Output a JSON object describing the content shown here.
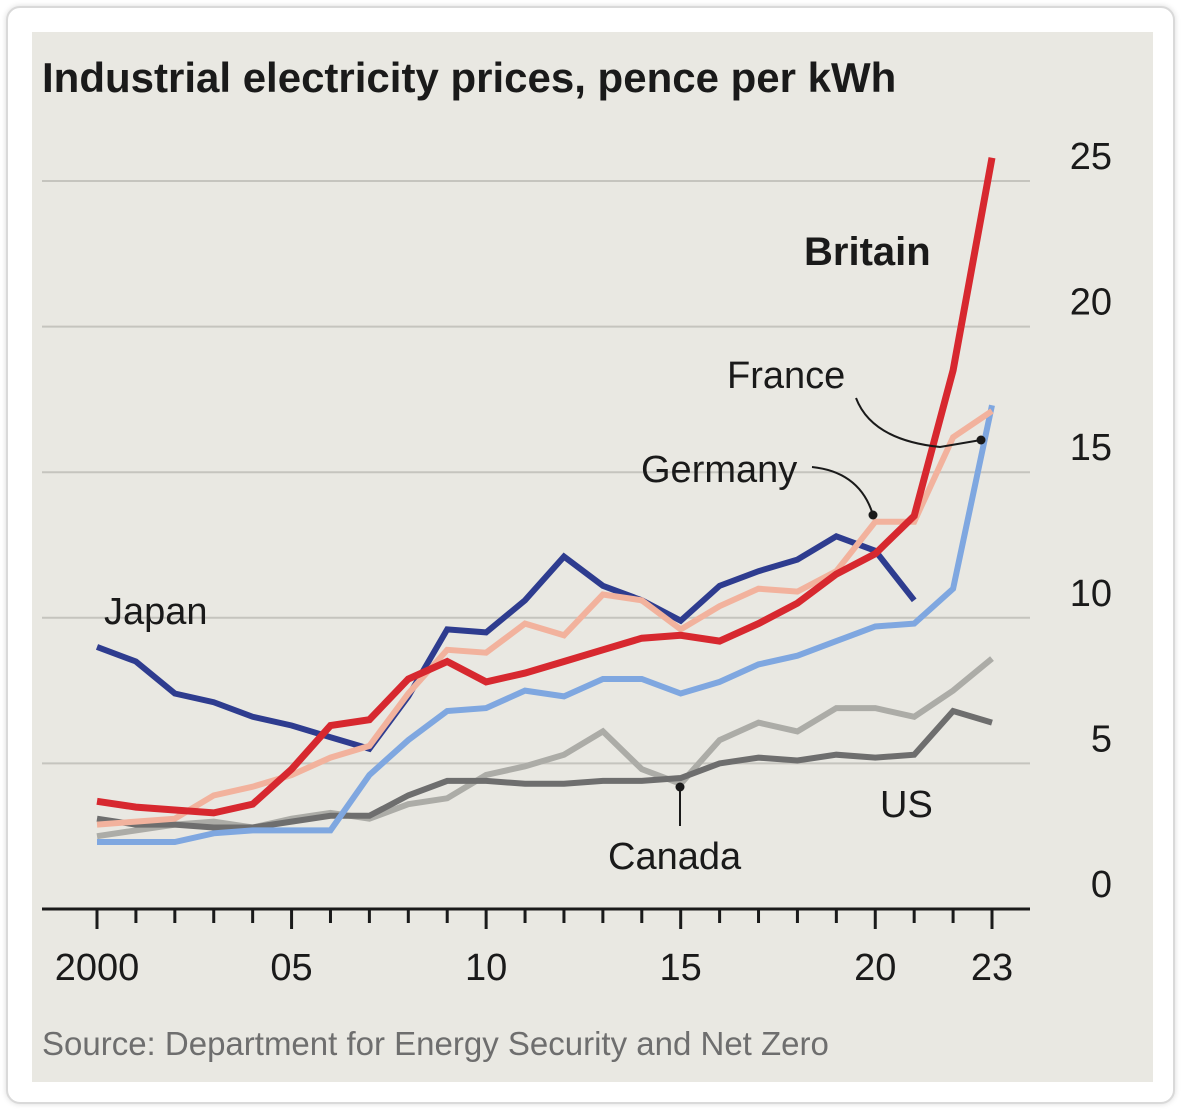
{
  "chart_data": {
    "type": "line",
    "title": "Industrial electricity prices, pence per kWh",
    "source": "Source: Department for Energy Security and Net Zero",
    "xlabel": "",
    "ylabel": "pence per kWh",
    "xlim": [
      2000,
      2023
    ],
    "ylim": [
      0,
      25
    ],
    "y_ticks": [
      0,
      5,
      10,
      15,
      20,
      25
    ],
    "x_ticks": [
      2000,
      2005,
      2010,
      2015,
      2020,
      2023
    ],
    "x_tick_labels": [
      "2000",
      "05",
      "10",
      "15",
      "20",
      "23"
    ],
    "grid": true,
    "series": [
      {
        "name": "Japan",
        "label": "Japan",
        "color": "#2e3c8f",
        "x": [
          2000,
          2001,
          2002,
          2003,
          2004,
          2005,
          2006,
          2007,
          2008,
          2009,
          2010,
          2011,
          2012,
          2013,
          2014,
          2015,
          2016,
          2017,
          2018,
          2019,
          2020,
          2021
        ],
        "values": [
          9.0,
          8.5,
          7.4,
          7.1,
          6.6,
          6.3,
          5.9,
          5.5,
          7.3,
          9.6,
          9.5,
          10.6,
          12.1,
          11.1,
          10.6,
          9.9,
          11.1,
          11.6,
          12.0,
          12.8,
          12.3,
          10.6
        ]
      },
      {
        "name": "Germany",
        "label": "Germany",
        "color": "#f2b29d",
        "x": [
          2000,
          2001,
          2002,
          2003,
          2004,
          2005,
          2006,
          2007,
          2008,
          2009,
          2010,
          2011,
          2012,
          2013,
          2014,
          2015,
          2016,
          2017,
          2018,
          2019,
          2020,
          2021,
          2022,
          2023
        ],
        "values": [
          2.9,
          3.0,
          3.1,
          3.9,
          4.2,
          4.6,
          5.2,
          5.6,
          7.4,
          8.9,
          8.8,
          9.8,
          9.4,
          10.8,
          10.6,
          9.6,
          10.4,
          11.0,
          10.9,
          11.6,
          13.3,
          13.3,
          16.2,
          17.1
        ]
      },
      {
        "name": "France",
        "label": "France",
        "color": "#7fa7e0",
        "x": [
          2000,
          2001,
          2002,
          2003,
          2004,
          2005,
          2006,
          2007,
          2008,
          2009,
          2010,
          2011,
          2012,
          2013,
          2014,
          2015,
          2016,
          2017,
          2018,
          2019,
          2020,
          2021,
          2022,
          2023
        ],
        "values": [
          2.3,
          2.3,
          2.3,
          2.6,
          2.7,
          2.7,
          2.7,
          4.6,
          5.8,
          6.8,
          6.9,
          7.5,
          7.3,
          7.9,
          7.9,
          7.4,
          7.8,
          8.4,
          8.7,
          9.2,
          9.7,
          9.8,
          11.0,
          17.3
        ]
      },
      {
        "name": "Britain",
        "label": "Britain",
        "color": "#d7282f",
        "x": [
          2000,
          2001,
          2002,
          2003,
          2004,
          2005,
          2006,
          2007,
          2008,
          2009,
          2010,
          2011,
          2012,
          2013,
          2014,
          2015,
          2016,
          2017,
          2018,
          2019,
          2020,
          2021,
          2022,
          2023
        ],
        "values": [
          3.7,
          3.5,
          3.4,
          3.3,
          3.6,
          4.8,
          6.3,
          6.5,
          7.9,
          8.5,
          7.8,
          8.1,
          8.5,
          8.9,
          9.3,
          9.4,
          9.2,
          9.8,
          10.5,
          11.5,
          12.2,
          13.5,
          18.5,
          25.8
        ]
      },
      {
        "name": "Canada",
        "label": "Canada",
        "color": "#acaca7",
        "x": [
          2000,
          2001,
          2002,
          2003,
          2004,
          2005,
          2006,
          2007,
          2008,
          2009,
          2010,
          2011,
          2012,
          2013,
          2014,
          2015,
          2016,
          2017,
          2018,
          2019,
          2020,
          2021,
          2022,
          2023
        ],
        "values": [
          2.5,
          2.7,
          2.9,
          3.0,
          2.8,
          3.1,
          3.3,
          3.1,
          3.6,
          3.8,
          4.6,
          4.9,
          5.3,
          6.1,
          4.8,
          4.3,
          5.8,
          6.4,
          6.1,
          6.9,
          6.9,
          6.6,
          7.5,
          8.6
        ]
      },
      {
        "name": "US",
        "label": "US",
        "color": "#6e6e6e",
        "x": [
          2000,
          2001,
          2002,
          2003,
          2004,
          2005,
          2006,
          2007,
          2008,
          2009,
          2010,
          2011,
          2012,
          2013,
          2014,
          2015,
          2016,
          2017,
          2018,
          2019,
          2020,
          2021,
          2022,
          2023
        ],
        "values": [
          3.1,
          2.9,
          2.9,
          2.8,
          2.8,
          3.0,
          3.2,
          3.2,
          3.9,
          4.4,
          4.4,
          4.3,
          4.3,
          4.4,
          4.4,
          4.5,
          5.0,
          5.2,
          5.1,
          5.3,
          5.2,
          5.3,
          6.8,
          6.4
        ]
      }
    ]
  }
}
